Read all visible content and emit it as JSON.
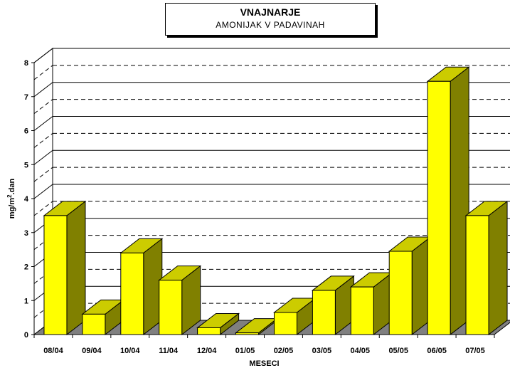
{
  "chart_data": {
    "type": "bar",
    "title": "VNAJNARJE",
    "subtitle": "AMONIJAK  V  PADAVINAH",
    "xlabel": "MESECI",
    "ylabel": "mg/m².dan",
    "ylabel_parts": {
      "a": "mg/m",
      "sup": "2",
      "b": ".dan"
    },
    "categories": [
      "08/04",
      "09/04",
      "10/04",
      "11/04",
      "12/04",
      "01/05",
      "02/05",
      "03/05",
      "04/05",
      "05/05",
      "06/05",
      "07/05"
    ],
    "values": [
      3.5,
      0.6,
      2.4,
      1.6,
      0.2,
      0.05,
      0.65,
      1.3,
      1.4,
      2.45,
      7.45,
      3.5
    ],
    "ylim": [
      0,
      8
    ],
    "yticks": [
      "0",
      "1",
      "2",
      "3",
      "4",
      "5",
      "6",
      "7",
      "8"
    ],
    "grid": true,
    "colors": {
      "bar_front": "#ffff00",
      "bar_top": "#cccc00",
      "bar_side": "#808000",
      "floor": "#808080"
    }
  }
}
